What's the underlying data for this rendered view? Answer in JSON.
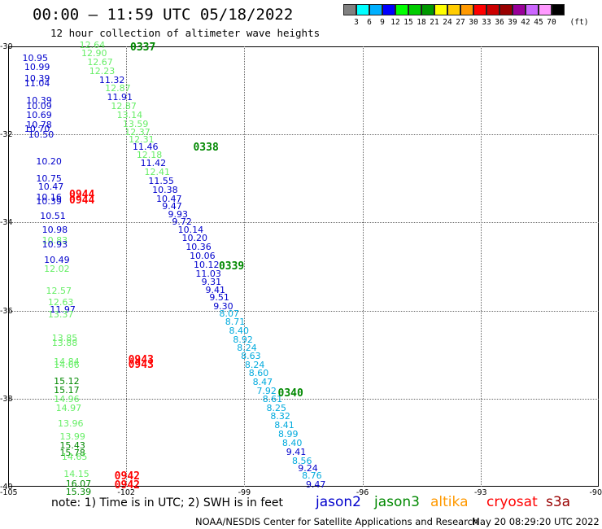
{
  "header": {
    "title": "00:00 – 11:59 UTC 05/18/2022",
    "subtitle": "12 hour collection of altimeter wave heights"
  },
  "legend": {
    "unit": "(ft)",
    "swatches": [
      "#808080",
      "#00ffff",
      "#00b0ff",
      "#0000ff",
      "#00ff00",
      "#00cc00",
      "#009900",
      "#ffff00",
      "#ffcc00",
      "#ff9900",
      "#ff0000",
      "#cc0000",
      "#990000",
      "#990099",
      "#cc66ff",
      "#ff99ff",
      "#000000"
    ],
    "ticks": [
      "3",
      "6",
      "9",
      "12",
      "15",
      "18",
      "21",
      "24",
      "27",
      "30",
      "33",
      "36",
      "39",
      "42",
      "45",
      "70"
    ]
  },
  "axes": {
    "lat_labels": [
      "-30",
      "-32",
      "-34",
      "-36",
      "-38",
      "-40"
    ],
    "lon_labels": [
      "-105",
      "-102",
      "-99",
      "-96",
      "-93",
      "-90"
    ],
    "lat_range": [
      -40,
      -30
    ],
    "lon_range": [
      -105,
      -90
    ]
  },
  "colors": {
    "jason2": "#0000cc",
    "jason3": "#008800",
    "altika": "#ff9900",
    "cryosat": "#ff0000",
    "s3a": "#990000",
    "light_green": "#66ee66",
    "cyan": "#00aadd",
    "blue": "#0000cc",
    "dark_green": "#008800",
    "red": "#ff0000"
  },
  "pass_labels": [
    {
      "text": "0337",
      "lon": -101.9,
      "lat": -30.0,
      "color": "dark_green"
    },
    {
      "text": "0338",
      "lon": -100.3,
      "lat": -32.27,
      "color": "dark_green"
    },
    {
      "text": "0339",
      "lon": -99.65,
      "lat": -34.98,
      "color": "dark_green"
    },
    {
      "text": "0340",
      "lon": -98.15,
      "lat": -37.85,
      "color": "dark_green"
    },
    {
      "text": "0944",
      "lon": -103.45,
      "lat": -33.35,
      "color": "red"
    },
    {
      "text": "0944",
      "lon": -103.45,
      "lat": -33.47,
      "color": "red"
    },
    {
      "text": "0943",
      "lon": -101.95,
      "lat": -37.1,
      "color": "red"
    },
    {
      "text": "0943",
      "lon": -101.95,
      "lat": -37.2,
      "color": "red"
    },
    {
      "text": "0942",
      "lon": -102.3,
      "lat": -39.75,
      "color": "red"
    },
    {
      "text": "0942",
      "lon": -102.3,
      "lat": -39.95,
      "color": "red"
    }
  ],
  "observations": [
    {
      "v": "12.64",
      "lon": -102.9,
      "lat": -29.97,
      "c": "light_green"
    },
    {
      "v": "12.90",
      "lon": -102.85,
      "lat": -30.14,
      "c": "light_green"
    },
    {
      "v": "12.67",
      "lon": -102.7,
      "lat": -30.35,
      "c": "light_green"
    },
    {
      "v": "12.23",
      "lon": -102.65,
      "lat": -30.55,
      "c": "light_green"
    },
    {
      "v": "11.32",
      "lon": -102.4,
      "lat": -30.75,
      "c": "blue"
    },
    {
      "v": "12.87",
      "lon": -102.25,
      "lat": -30.95,
      "c": "light_green"
    },
    {
      "v": "11.91",
      "lon": -102.2,
      "lat": -31.15,
      "c": "blue"
    },
    {
      "v": "12.87",
      "lon": -102.1,
      "lat": -31.35,
      "c": "light_green"
    },
    {
      "v": "13.14",
      "lon": -101.95,
      "lat": -31.55,
      "c": "light_green"
    },
    {
      "v": "13.59",
      "lon": -101.8,
      "lat": -31.75,
      "c": "light_green"
    },
    {
      "v": "12.37",
      "lon": -101.75,
      "lat": -31.95,
      "c": "light_green"
    },
    {
      "v": "12.31",
      "lon": -101.65,
      "lat": -32.1,
      "c": "light_green"
    },
    {
      "v": "11.46",
      "lon": -101.55,
      "lat": -32.28,
      "c": "blue"
    },
    {
      "v": "12.18",
      "lon": -101.45,
      "lat": -32.45,
      "c": "light_green"
    },
    {
      "v": "11.42",
      "lon": -101.35,
      "lat": -32.65,
      "c": "blue"
    },
    {
      "v": "12.41",
      "lon": -101.25,
      "lat": -32.85,
      "c": "light_green"
    },
    {
      "v": "11.55",
      "lon": -101.15,
      "lat": -33.05,
      "c": "blue"
    },
    {
      "v": "10.38",
      "lon": -101.05,
      "lat": -33.25,
      "c": "blue"
    },
    {
      "v": "10.47",
      "lon": -100.95,
      "lat": -33.45,
      "c": "blue"
    },
    {
      "v": "9.47",
      "lon": -100.8,
      "lat": -33.62,
      "c": "blue"
    },
    {
      "v": "9.93",
      "lon": -100.65,
      "lat": -33.8,
      "c": "blue"
    },
    {
      "v": "9.72",
      "lon": -100.55,
      "lat": -33.97,
      "c": "blue"
    },
    {
      "v": "10.14",
      "lon": -100.4,
      "lat": -34.15,
      "c": "blue"
    },
    {
      "v": "10.20",
      "lon": -100.3,
      "lat": -34.35,
      "c": "blue"
    },
    {
      "v": "10.36",
      "lon": -100.2,
      "lat": -34.55,
      "c": "blue"
    },
    {
      "v": "10.06",
      "lon": -100.1,
      "lat": -34.75,
      "c": "blue"
    },
    {
      "v": "10.12",
      "lon": -100.0,
      "lat": -34.95,
      "c": "blue"
    },
    {
      "v": "11.03",
      "lon": -99.95,
      "lat": -35.15,
      "c": "blue"
    },
    {
      "v": "9.31",
      "lon": -99.8,
      "lat": -35.35,
      "c": "blue"
    },
    {
      "v": "9.41",
      "lon": -99.7,
      "lat": -35.52,
      "c": "blue"
    },
    {
      "v": "9.51",
      "lon": -99.6,
      "lat": -35.7,
      "c": "blue"
    },
    {
      "v": "9.30",
      "lon": -99.5,
      "lat": -35.9,
      "c": "blue"
    },
    {
      "v": "8.07",
      "lon": -99.35,
      "lat": -36.07,
      "c": "cyan"
    },
    {
      "v": "8.71",
      "lon": -99.2,
      "lat": -36.25,
      "c": "cyan"
    },
    {
      "v": "8.40",
      "lon": -99.1,
      "lat": -36.45,
      "c": "cyan"
    },
    {
      "v": "8.92",
      "lon": -99.0,
      "lat": -36.65,
      "c": "cyan"
    },
    {
      "v": "8.24",
      "lon": -98.9,
      "lat": -36.83,
      "c": "cyan"
    },
    {
      "v": "8.63",
      "lon": -98.8,
      "lat": -37.02,
      "c": "cyan"
    },
    {
      "v": "8.24",
      "lon": -98.7,
      "lat": -37.22,
      "c": "cyan"
    },
    {
      "v": "8.60",
      "lon": -98.6,
      "lat": -37.42,
      "c": "cyan"
    },
    {
      "v": "8.47",
      "lon": -98.5,
      "lat": -37.62,
      "c": "cyan"
    },
    {
      "v": "7.92",
      "lon": -98.4,
      "lat": -37.82,
      "c": "cyan"
    },
    {
      "v": "8.61",
      "lon": -98.25,
      "lat": -38.0,
      "c": "cyan"
    },
    {
      "v": "8.25",
      "lon": -98.15,
      "lat": -38.2,
      "c": "cyan"
    },
    {
      "v": "8.32",
      "lon": -98.05,
      "lat": -38.4,
      "c": "cyan"
    },
    {
      "v": "8.41",
      "lon": -97.95,
      "lat": -38.6,
      "c": "cyan"
    },
    {
      "v": "8.99",
      "lon": -97.85,
      "lat": -38.8,
      "c": "cyan"
    },
    {
      "v": "8.40",
      "lon": -97.75,
      "lat": -39.0,
      "c": "cyan"
    },
    {
      "v": "9.41",
      "lon": -97.65,
      "lat": -39.2,
      "c": "blue"
    },
    {
      "v": "8.56",
      "lon": -97.5,
      "lat": -39.4,
      "c": "cyan"
    },
    {
      "v": "9.24",
      "lon": -97.35,
      "lat": -39.58,
      "c": "blue"
    },
    {
      "v": "8.76",
      "lon": -97.25,
      "lat": -39.75,
      "c": "cyan"
    },
    {
      "v": "9.47",
      "lon": -97.15,
      "lat": -39.95,
      "c": "blue"
    },
    {
      "v": "10.95",
      "lon": -104.35,
      "lat": -30.25,
      "c": "blue"
    },
    {
      "v": "10.99",
      "lon": -104.3,
      "lat": -30.47,
      "c": "blue"
    },
    {
      "v": "10.39",
      "lon": -104.3,
      "lat": -30.72,
      "c": "blue"
    },
    {
      "v": "11.04",
      "lon": -104.3,
      "lat": -30.83,
      "c": "blue"
    },
    {
      "v": "10.39",
      "lon": -104.25,
      "lat": -31.22,
      "c": "blue"
    },
    {
      "v": "10.09",
      "lon": -104.25,
      "lat": -31.35,
      "c": "blue"
    },
    {
      "v": "10.69",
      "lon": -104.25,
      "lat": -31.55,
      "c": "blue"
    },
    {
      "v": "10.78",
      "lon": -104.25,
      "lat": -31.78,
      "c": "blue"
    },
    {
      "v": "10.70",
      "lon": -104.3,
      "lat": -31.87,
      "c": "blue"
    },
    {
      "v": "10.50",
      "lon": -104.2,
      "lat": -32.0,
      "c": "blue"
    },
    {
      "v": "10.20",
      "lon": -104.0,
      "lat": -32.6,
      "c": "blue"
    },
    {
      "v": "10.75",
      "lon": -104.0,
      "lat": -33.0,
      "c": "blue"
    },
    {
      "v": "10.47",
      "lon": -103.95,
      "lat": -33.18,
      "c": "blue"
    },
    {
      "v": "10.16",
      "lon": -104.0,
      "lat": -33.42,
      "c": "blue"
    },
    {
      "v": "10.39",
      "lon": -104.0,
      "lat": -33.52,
      "c": "blue"
    },
    {
      "v": "10.51",
      "lon": -103.9,
      "lat": -33.85,
      "c": "blue"
    },
    {
      "v": "10.98",
      "lon": -103.85,
      "lat": -34.15,
      "c": "blue"
    },
    {
      "v": "10.83",
      "lon": -103.85,
      "lat": -34.4,
      "c": "light_green"
    },
    {
      "v": "10.93",
      "lon": -103.85,
      "lat": -34.5,
      "c": "blue"
    },
    {
      "v": "10.49",
      "lon": -103.8,
      "lat": -34.85,
      "c": "blue"
    },
    {
      "v": "12.02",
      "lon": -103.8,
      "lat": -35.05,
      "c": "light_green"
    },
    {
      "v": "12.57",
      "lon": -103.75,
      "lat": -35.55,
      "c": "light_green"
    },
    {
      "v": "12.63",
      "lon": -103.7,
      "lat": -35.8,
      "c": "light_green"
    },
    {
      "v": "11.97",
      "lon": -103.65,
      "lat": -35.97,
      "c": "blue"
    },
    {
      "v": "13.37",
      "lon": -103.7,
      "lat": -36.08,
      "c": "light_green"
    },
    {
      "v": "13.85",
      "lon": -103.6,
      "lat": -36.62,
      "c": "light_green"
    },
    {
      "v": "13.88",
      "lon": -103.6,
      "lat": -36.72,
      "c": "light_green"
    },
    {
      "v": "14.84",
      "lon": -103.55,
      "lat": -37.15,
      "c": "light_green"
    },
    {
      "v": "14.66",
      "lon": -103.55,
      "lat": -37.23,
      "c": "light_green"
    },
    {
      "v": "15.12",
      "lon": -103.55,
      "lat": -37.6,
      "c": "dark_green"
    },
    {
      "v": "15.17",
      "lon": -103.55,
      "lat": -37.8,
      "c": "dark_green"
    },
    {
      "v": "14.96",
      "lon": -103.55,
      "lat": -38.0,
      "c": "light_green"
    },
    {
      "v": "14.97",
      "lon": -103.5,
      "lat": -38.2,
      "c": "light_green"
    },
    {
      "v": "13.96",
      "lon": -103.45,
      "lat": -38.55,
      "c": "light_green"
    },
    {
      "v": "13.99",
      "lon": -103.4,
      "lat": -38.85,
      "c": "light_green"
    },
    {
      "v": "15.43",
      "lon": -103.4,
      "lat": -39.05,
      "c": "dark_green"
    },
    {
      "v": "15.78",
      "lon": -103.4,
      "lat": -39.22,
      "c": "dark_green"
    },
    {
      "v": "14.65",
      "lon": -103.35,
      "lat": -39.32,
      "c": "light_green"
    },
    {
      "v": "14.15",
      "lon": -103.3,
      "lat": -39.7,
      "c": "light_green"
    },
    {
      "v": "16.07",
      "lon": -103.25,
      "lat": -39.92,
      "c": "dark_green"
    },
    {
      "v": "15.39",
      "lon": -103.25,
      "lat": -40.12,
      "c": "dark_green"
    }
  ],
  "footer": {
    "note": "note:  1) Time is in UTC;  2) SWH is in feet",
    "satellites": [
      {
        "name": "jason2",
        "color": "jason2"
      },
      {
        "name": "jason3",
        "color": "jason3"
      },
      {
        "name": "altika",
        "color": "altika"
      },
      {
        "name": "cryosat",
        "color": "cryosat"
      },
      {
        "name": "s3a",
        "color": "s3a"
      }
    ],
    "credit": "NOAA/NESDIS Center for Satellite Applications and Research",
    "timestamp": "May 20 08:29:20 UTC 2022"
  }
}
